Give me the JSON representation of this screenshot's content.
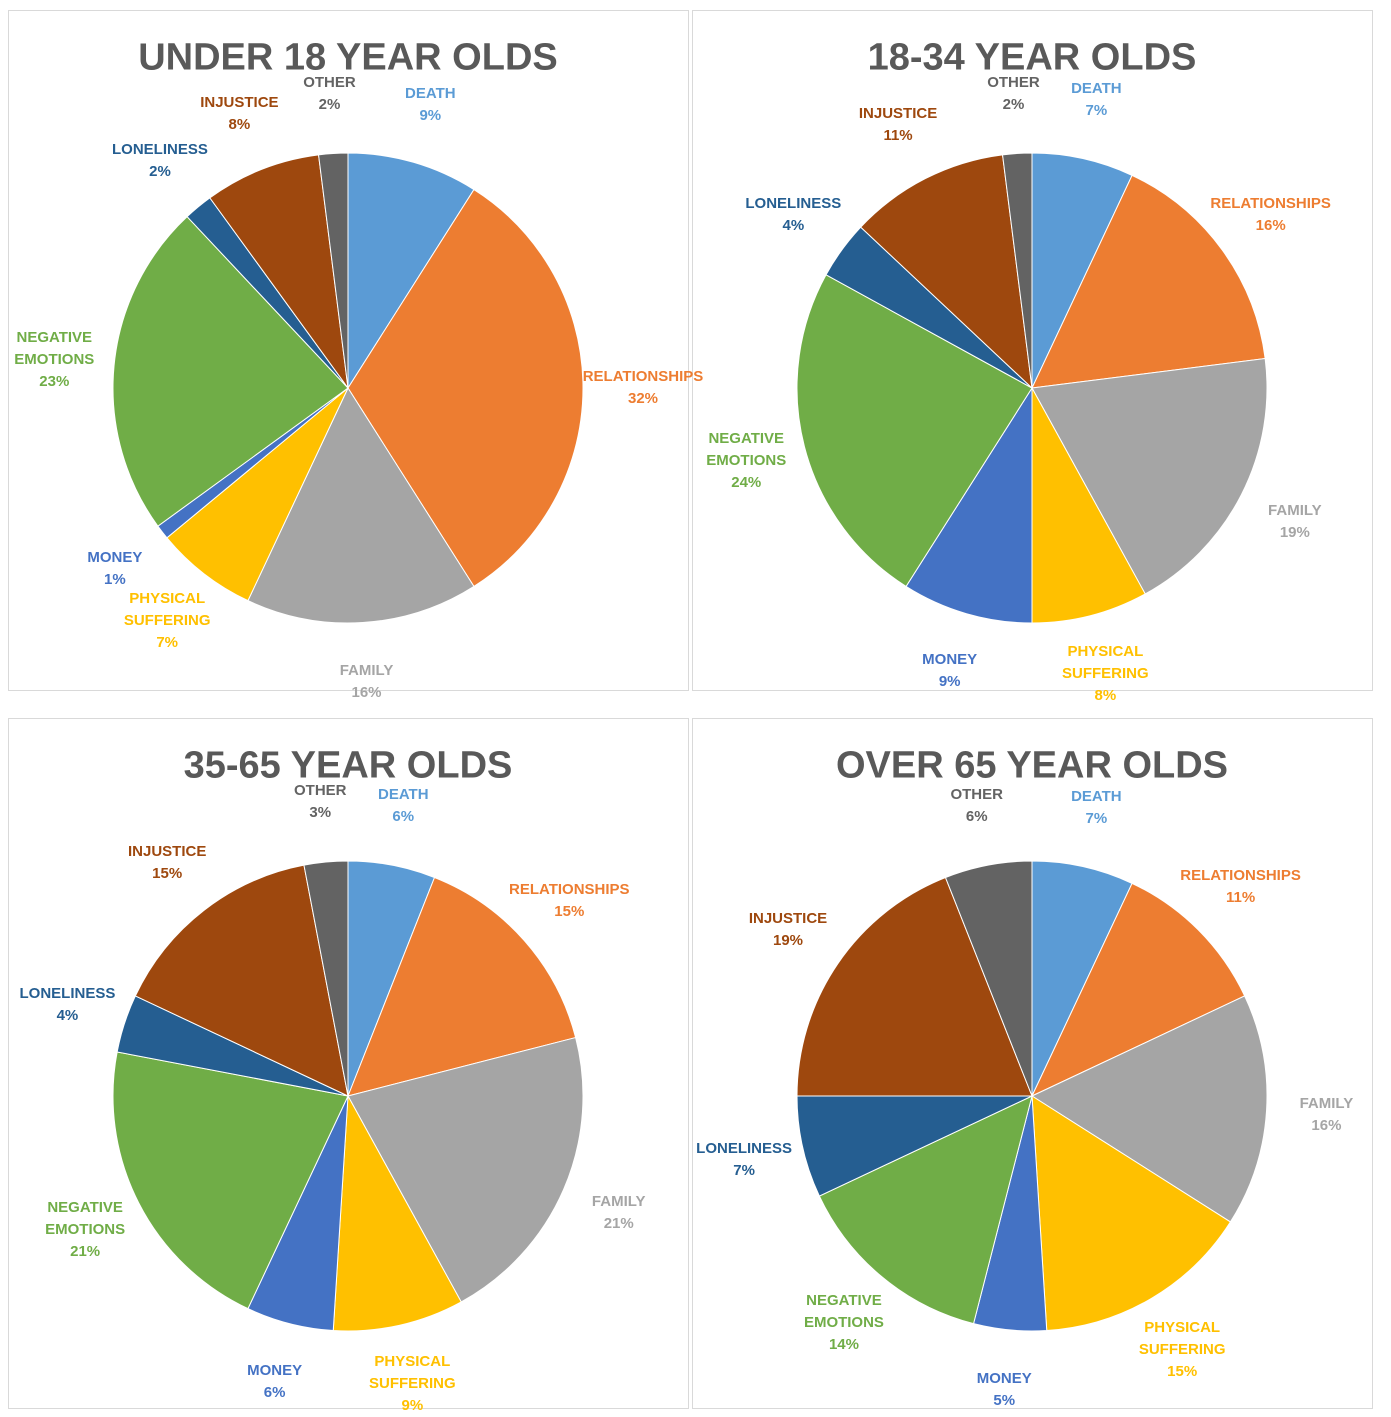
{
  "chart_data": [
    {
      "type": "pie",
      "title": "UNDER 18 YEAR OLDS",
      "categories": [
        "DEATH",
        "RELATIONSHIPS",
        "FAMILY",
        "PHYSICAL SUFFERING",
        "MONEY",
        "NEGATIVE EMOTIONS",
        "LONELINESS",
        "INJUSTICE",
        "OTHER"
      ],
      "values": [
        9,
        32,
        16,
        7,
        1,
        23,
        2,
        8,
        2
      ],
      "value_labels": [
        "9%",
        "32%",
        "16%",
        "7%",
        "1%",
        "23%",
        "2%",
        "8%",
        "2%"
      ],
      "colors": [
        "#5b9bd5",
        "#ed7d31",
        "#a5a5a5",
        "#ffc000",
        "#4472c4",
        "#70ad47",
        "#255e91",
        "#9e480e",
        "#636363"
      ]
    },
    {
      "type": "pie",
      "title": "18-34 YEAR OLDS",
      "categories": [
        "DEATH",
        "RELATIONSHIPS",
        "FAMILY",
        "PHYSICAL SUFFERING",
        "MONEY",
        "NEGATIVE EMOTIONS",
        "LONELINESS",
        "INJUSTICE",
        "OTHER"
      ],
      "values": [
        7,
        16,
        19,
        8,
        9,
        24,
        4,
        11,
        2
      ],
      "value_labels": [
        "7%",
        "16%",
        "19%",
        "8%",
        "9%",
        "24%",
        "4%",
        "11%",
        "2%"
      ],
      "colors": [
        "#5b9bd5",
        "#ed7d31",
        "#a5a5a5",
        "#ffc000",
        "#4472c4",
        "#70ad47",
        "#255e91",
        "#9e480e",
        "#636363"
      ]
    },
    {
      "type": "pie",
      "title": "35-65 YEAR OLDS",
      "categories": [
        "DEATH",
        "RELATIONSHIPS",
        "FAMILY",
        "PHYSICAL SUFFERING",
        "MONEY",
        "NEGATIVE EMOTIONS",
        "LONELINESS",
        "INJUSTICE",
        "OTHER"
      ],
      "values": [
        6,
        15,
        21,
        9,
        6,
        21,
        4,
        15,
        3
      ],
      "value_labels": [
        "6%",
        "15%",
        "21%",
        "9%",
        "6%",
        "21%",
        "4%",
        "15%",
        "3%"
      ],
      "colors": [
        "#5b9bd5",
        "#ed7d31",
        "#a5a5a5",
        "#ffc000",
        "#4472c4",
        "#70ad47",
        "#255e91",
        "#9e480e",
        "#636363"
      ]
    },
    {
      "type": "pie",
      "title": "OVER 65 YEAR OLDS",
      "categories": [
        "DEATH",
        "RELATIONSHIPS",
        "FAMILY",
        "PHYSICAL SUFFERING",
        "MONEY",
        "NEGATIVE EMOTIONS",
        "LONELINESS",
        "INJUSTICE",
        "OTHER"
      ],
      "values": [
        7,
        11,
        16,
        15,
        5,
        14,
        7,
        19,
        6
      ],
      "value_labels": [
        "7%",
        "11%",
        "16%",
        "15%",
        "5%",
        "14%",
        "7%",
        "19%",
        "6%"
      ],
      "colors": [
        "#5b9bd5",
        "#ed7d31",
        "#a5a5a5",
        "#ffc000",
        "#4472c4",
        "#70ad47",
        "#255e91",
        "#9e480e",
        "#636363"
      ]
    }
  ]
}
